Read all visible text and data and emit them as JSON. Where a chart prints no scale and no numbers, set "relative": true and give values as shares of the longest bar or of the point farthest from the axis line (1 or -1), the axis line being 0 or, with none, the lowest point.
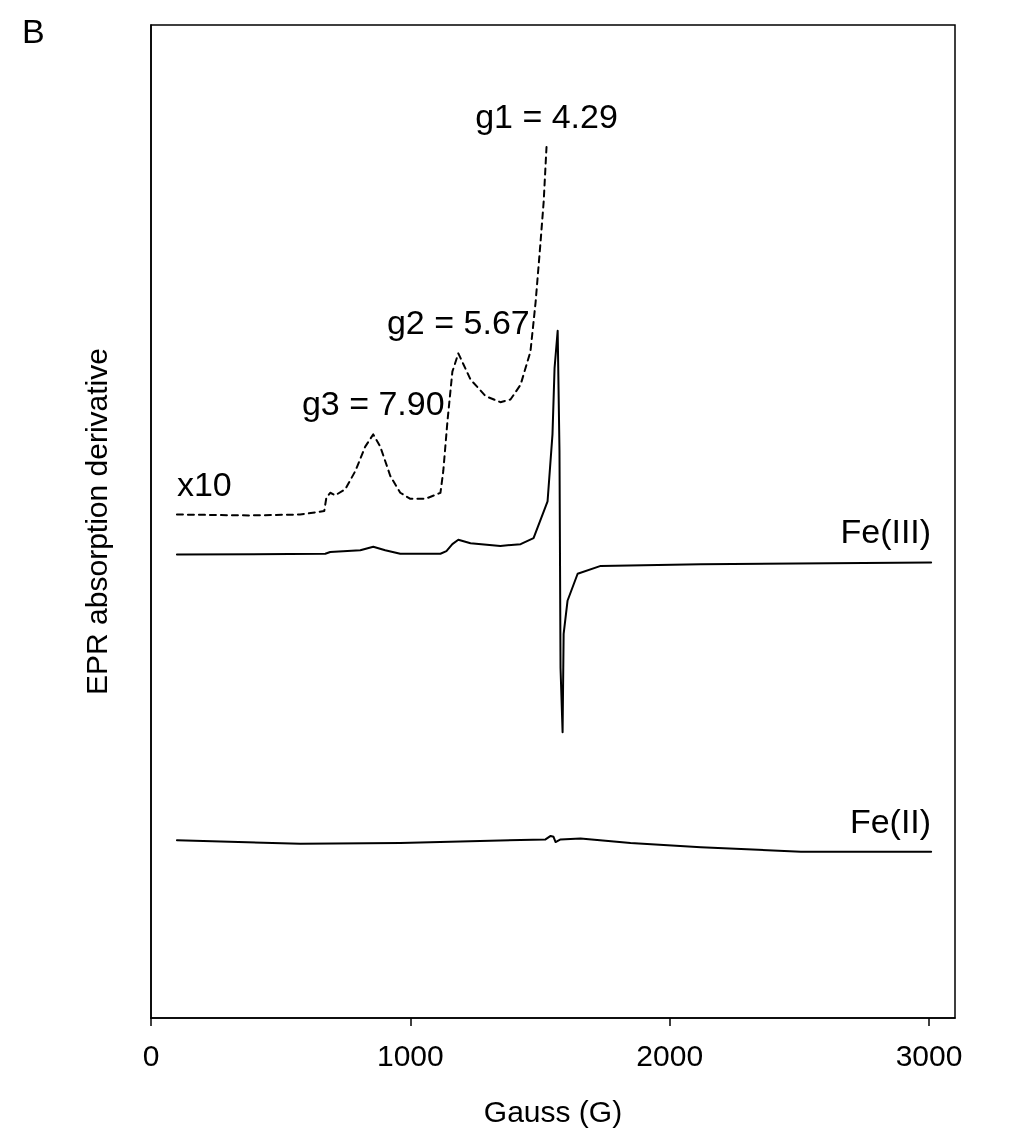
{
  "chart_data": {
    "type": "line",
    "relative": true,
    "xlabel": "Gauss (G)",
    "ylabel": "EPR absorption derivative",
    "xlim": [
      0,
      3100
    ],
    "xticks": [
      0,
      1000,
      2000,
      3000
    ],
    "grid": false,
    "marker": "none",
    "series": [
      {
        "color": "#000000",
        "line_style": "dashed",
        "x": [
          100,
          382,
          575,
          668,
          676,
          691,
          710,
          749,
          788,
          826,
          857,
          884,
          923,
          961,
          1000,
          1058,
          1116,
          1127,
          1143,
          1162,
          1185,
          1232,
          1290,
          1347,
          1386,
          1425,
          1463,
          1483,
          1502,
          1514,
          1525
        ],
        "values": [
          0.578,
          0.577,
          0.578,
          0.582,
          0.597,
          0.603,
          0.6,
          0.607,
          0.628,
          0.656,
          0.67,
          0.656,
          0.622,
          0.603,
          0.596,
          0.596,
          0.603,
          0.628,
          0.685,
          0.742,
          0.763,
          0.733,
          0.714,
          0.707,
          0.71,
          0.727,
          0.765,
          0.822,
          0.891,
          0.937,
          1.0
        ]
      },
      {
        "color": "#000000",
        "line_style": "solid",
        "x": [
          100,
          672,
          691,
          807,
          857,
          903,
          961,
          1116,
          1139,
          1162,
          1185,
          1232,
          1347,
          1425,
          1475,
          1529,
          1548,
          1556,
          1568,
          1575,
          1579,
          1587,
          1591,
          1606,
          1645,
          1734,
          2120,
          3008
        ],
        "values": [
          0.532,
          0.533,
          0.535,
          0.537,
          0.541,
          0.537,
          0.533,
          0.533,
          0.536,
          0.544,
          0.549,
          0.545,
          0.542,
          0.544,
          0.551,
          0.593,
          0.67,
          0.746,
          0.789,
          0.651,
          0.402,
          0.328,
          0.441,
          0.479,
          0.51,
          0.519,
          0.521,
          0.523
        ]
      },
      {
        "color": "#000000",
        "line_style": "solid",
        "x": [
          100,
          575,
          961,
          1521,
          1541,
          1552,
          1560,
          1579,
          1656,
          1849,
          2120,
          2506,
          3008
        ],
        "values": [
          0.204,
          0.2,
          0.201,
          0.205,
          0.209,
          0.208,
          0.202,
          0.205,
          0.206,
          0.201,
          0.196,
          0.191,
          0.191
        ]
      }
    ],
    "annotations": [
      "B",
      {
        "text": "x10",
        "x": 100,
        "y": 0.578
      },
      {
        "text": "g3 = 7.90",
        "x": 857,
        "y": 0.67
      },
      {
        "text": "g2 = 5.67",
        "x": 1185,
        "y": 0.763
      },
      {
        "text": "g1 = 4.29",
        "x": 1525,
        "y": 1.0
      },
      {
        "text": "Fe(III)",
        "x": 3008,
        "y": 0.523
      },
      {
        "text": "Fe(II)",
        "x": 3008,
        "y": 0.191
      }
    ]
  }
}
